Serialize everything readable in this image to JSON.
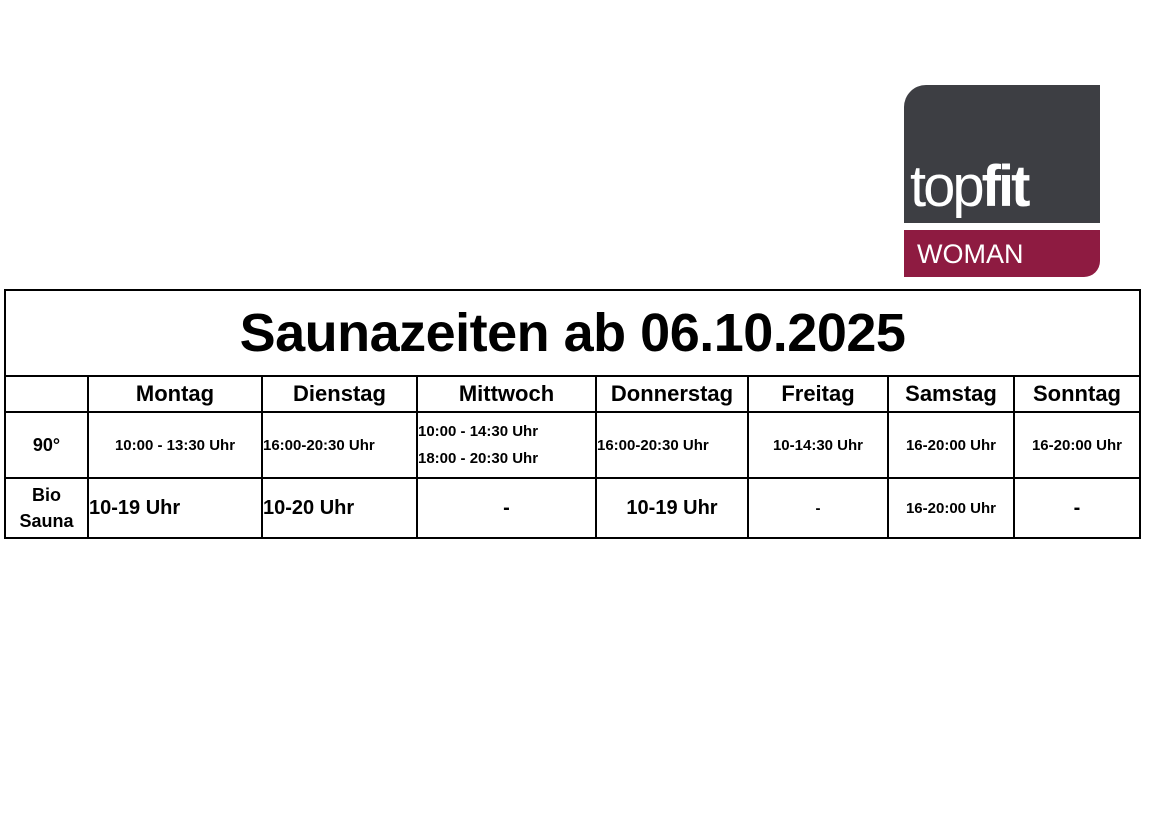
{
  "logo": {
    "word_light": "top",
    "word_bold": "fit",
    "sub": "WOMAN",
    "colors": {
      "dark": "#3d3e43",
      "accent": "#8e1b41"
    }
  },
  "title": "Saunazeiten ab 06.10.2025",
  "days": [
    "Montag",
    "Dienstag",
    "Mittwoch",
    "Donnerstag",
    "Freitag",
    "Samstag",
    "Sonntag"
  ],
  "rows": [
    {
      "label": "90°",
      "cells": [
        "10:00 - 13:30 Uhr",
        "16:00-20:30 Uhr",
        [
          "10:00 - 14:30 Uhr",
          "18:00 - 20:30 Uhr"
        ],
        "16:00-20:30 Uhr",
        "10-14:30 Uhr",
        "16-20:00 Uhr",
        "16-20:00 Uhr"
      ]
    },
    {
      "label_line1": "Bio",
      "label_line2": "Sauna",
      "cells": [
        "10-19 Uhr",
        "10-20 Uhr",
        "-",
        "10-19 Uhr",
        "-",
        "16-20:00 Uhr",
        "-"
      ]
    }
  ]
}
